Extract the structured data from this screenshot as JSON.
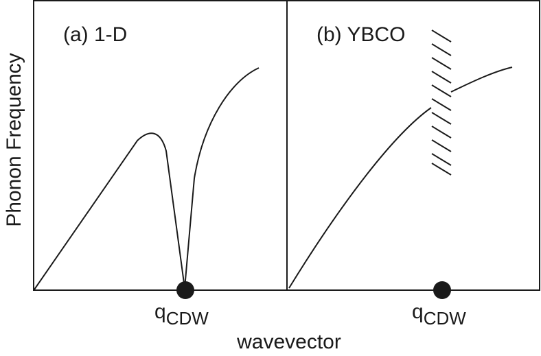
{
  "figure": {
    "y_axis_label": "Phonon Frequency",
    "x_axis_label": "wavevector",
    "panels": [
      {
        "label": "(a) 1-D",
        "marker_label": "q",
        "marker_subscript": "CDW"
      },
      {
        "label": "(b) YBCO",
        "marker_label": "q",
        "marker_subscript": "CDW"
      }
    ]
  },
  "colors": {
    "line": "#1a1a1a",
    "background": "#ffffff"
  }
}
